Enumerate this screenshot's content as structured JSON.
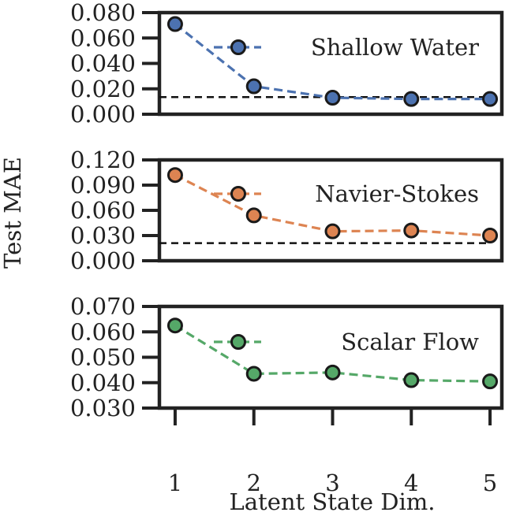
{
  "chart_data": [
    {
      "type": "line",
      "series": [
        {
          "name": "Shallow Water",
          "color": "#4c72b0",
          "x": [
            1,
            2,
            3,
            4,
            5
          ],
          "values": [
            0.071,
            0.022,
            0.013,
            0.012,
            0.012
          ]
        }
      ],
      "reference_line": {
        "value": 0.0135,
        "style": "dashed",
        "color": "#111111"
      },
      "ylim": [
        0.0,
        0.08
      ],
      "yticks": [
        "0.000",
        "0.020",
        "0.040",
        "0.060",
        "0.080"
      ],
      "legend_placement": "upper right",
      "grid": false
    },
    {
      "type": "line",
      "series": [
        {
          "name": "Navier-Stokes",
          "color": "#dd8452",
          "x": [
            1,
            2,
            3,
            4,
            5
          ],
          "values": [
            0.102,
            0.054,
            0.035,
            0.036,
            0.03
          ]
        }
      ],
      "reference_line": {
        "value": 0.021,
        "style": "dashed",
        "color": "#111111"
      },
      "ylim": [
        0.0,
        0.12
      ],
      "yticks": [
        "0.000",
        "0.030",
        "0.060",
        "0.090",
        "0.120"
      ],
      "legend_placement": "upper right",
      "grid": false
    },
    {
      "type": "line",
      "series": [
        {
          "name": "Scalar Flow",
          "color": "#55a868",
          "x": [
            1,
            2,
            3,
            4,
            5
          ],
          "values": [
            0.0625,
            0.0435,
            0.044,
            0.041,
            0.0405
          ]
        }
      ],
      "ylim": [
        0.03,
        0.07
      ],
      "yticks": [
        "0.030",
        "0.040",
        "0.050",
        "0.060",
        "0.070"
      ],
      "legend_placement": "upper right",
      "grid": false
    }
  ],
  "shared": {
    "xlabel": "Latent State Dim.",
    "ylabel": "Test MAE",
    "xticks": [
      "1",
      "2",
      "3",
      "4",
      "5"
    ],
    "xlim": [
      0.8,
      5.15
    ]
  }
}
